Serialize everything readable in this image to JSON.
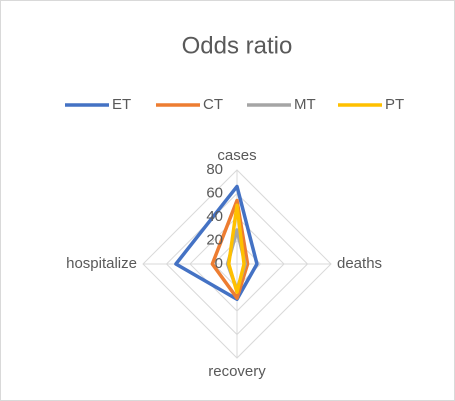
{
  "chart_data": {
    "type": "radar",
    "title": "Odds ratio",
    "categories": [
      "cases",
      "deaths",
      "recovery",
      "hospitalize"
    ],
    "series": [
      {
        "name": "ET",
        "color": "#4472c4",
        "values": [
          66,
          17,
          30,
          52
        ]
      },
      {
        "name": "CT",
        "color": "#ed7d31",
        "values": [
          54,
          9,
          29,
          21
        ]
      },
      {
        "name": "MT",
        "color": "#a5a5a5",
        "values": [
          29,
          7,
          22,
          8
        ]
      },
      {
        "name": "PT",
        "color": "#ffc000",
        "values": [
          50,
          6,
          24,
          7
        ]
      }
    ],
    "ylim": [
      0,
      80
    ],
    "yticks": [
      0,
      20,
      40,
      60,
      80
    ],
    "grid": true,
    "legend": "top"
  }
}
